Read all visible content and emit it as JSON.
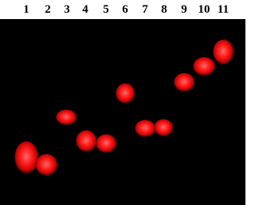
{
  "lanes": [
    "1",
    "2",
    "3",
    "4",
    "5",
    "6",
    "7",
    "8",
    "9",
    "10",
    "11"
  ]
}
